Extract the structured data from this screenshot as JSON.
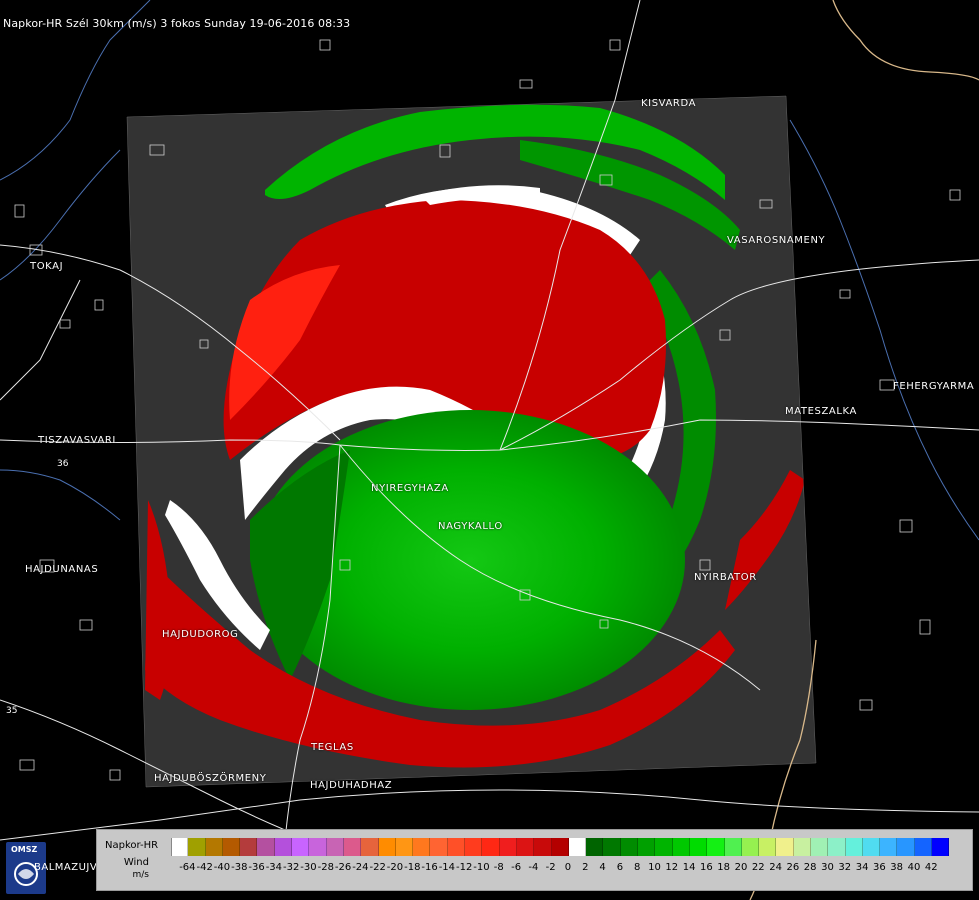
{
  "title": "Napkor-HR Szél 30km (m/s) 3 fokos Sunday 19-06-2016 08:33",
  "towns": {
    "kisvarda": "KISVARDA",
    "vasarosnameny": "VASAROSNAMENY",
    "tokaj": "TOKAJ",
    "fehergyarmat": "FEHERGYARMA",
    "mateszalka": "MATESZALKA",
    "tiszavasvari": "TISZAVASVARI",
    "nyiregyhaza": "NYIREGYHAZA",
    "nagykallo": "NAGYKALLO",
    "hajdunanas": "HAJDUNANAS",
    "nyirbator": "NYIRBATOR",
    "hajdudorog": "HAJDUDOROG",
    "teglas": "TEGLAS",
    "hajduboszormeny": "HAJDUBÖSZÖRMENY",
    "hajduhadhaz": "HAJDUHADHAZ",
    "balmazujvaros": "BALMAZUJVAROS"
  },
  "road_numbers": {
    "r36": "36",
    "r35": "35"
  },
  "legend": {
    "radar_name": "Napkor-HR",
    "quantity": "Wind",
    "unit": "m/s",
    "ticks": [
      "-64",
      "-42",
      "-40",
      "-38",
      "-36",
      "-34",
      "-32",
      "-30",
      "-28",
      "-26",
      "-24",
      "-22",
      "-20",
      "-18",
      "-16",
      "-14",
      "-12",
      "-10",
      "-8",
      "-6",
      "-4",
      "-2",
      "0",
      "2",
      "4",
      "6",
      "8",
      "10",
      "12",
      "14",
      "16",
      "18",
      "20",
      "22",
      "24",
      "26",
      "28",
      "30",
      "32",
      "34",
      "36",
      "38",
      "40",
      "42"
    ],
    "colors": [
      "#ffffff",
      "#a0a000",
      "#b47800",
      "#b45a00",
      "#b43c3c",
      "#b450a0",
      "#b450dc",
      "#c864ff",
      "#c864dc",
      "#c864b4",
      "#dc5a8c",
      "#e6643c",
      "#ff8c00",
      "#ff9614",
      "#ff781e",
      "#ff6432",
      "#ff5028",
      "#ff3c1e",
      "#ff2814",
      "#f01e1e",
      "#dc1414",
      "#c80a0a",
      "#b40000",
      "#ffffff",
      "#006400",
      "#007800",
      "#008c00",
      "#00a000",
      "#00b400",
      "#00c800",
      "#00dc00",
      "#14f014",
      "#50f050",
      "#96f050",
      "#c8f064",
      "#f0f08c",
      "#c8f0a0",
      "#a0f0b4",
      "#8cf0c8",
      "#64f0dc",
      "#50dcf0",
      "#3cb4ff",
      "#2896ff",
      "#1464ff",
      "#0000ff"
    ]
  },
  "logo": {
    "text": "OMSZ"
  }
}
